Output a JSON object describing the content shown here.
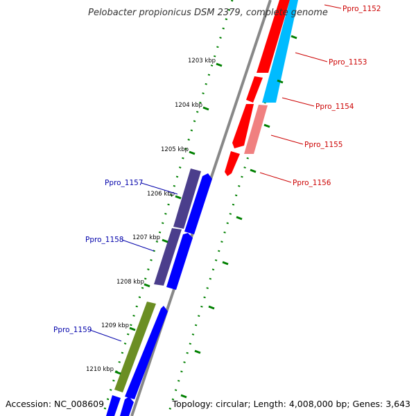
{
  "title": "Pelobacter propionicus DSM 2379, complete genome",
  "accession_text": "Accession: NC_008609",
  "topology_text": "Topology: circular; Length: 4,008,000 bp; Genes: 3,643",
  "scale": {
    "unit": "kbp",
    "ticks": [
      "1203 kbp",
      "1204 kbp",
      "1205 kbp",
      "1206 kbp",
      "1207 kbp",
      "1208 kbp",
      "1209 kbp",
      "1210 kbp"
    ]
  },
  "genes": [
    {
      "label": "Ppro_1152",
      "strand": "forward"
    },
    {
      "label": "Ppro_1153",
      "strand": "forward"
    },
    {
      "label": "Ppro_1154",
      "strand": "forward"
    },
    {
      "label": "Ppro_1155",
      "strand": "forward"
    },
    {
      "label": "Ppro_1156",
      "strand": "forward"
    },
    {
      "label": "Ppro_1157",
      "strand": "reverse"
    },
    {
      "label": "Ppro_1158",
      "strand": "reverse"
    },
    {
      "label": "Ppro_1159",
      "strand": "reverse"
    }
  ],
  "colors": {
    "forward_cds": "#ff0000",
    "forward_gene": "#00bbff",
    "forward_gene_light": "#f08080",
    "reverse_cds": "#0000ff",
    "reverse_gene": "#4b3e8c",
    "reverse_gene_green": "#6b8e23",
    "backbone": "#888888",
    "ticks": "#008000"
  }
}
